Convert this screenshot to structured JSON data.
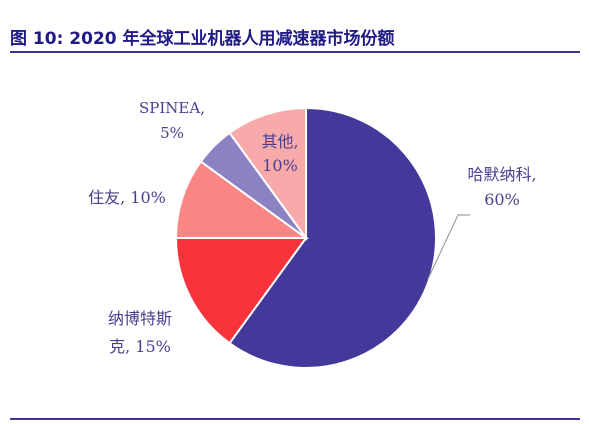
{
  "figure": {
    "title": "图 10:  2020 年全球工业机器人用减速器市场份额"
  },
  "chart_data": {
    "type": "pie",
    "title": "图 10:  2020 年全球工业机器人用减速器市场份额",
    "slices": [
      {
        "name": "哈默纳科",
        "value": 60,
        "color": "#43399a",
        "label_lines": [
          "哈默纳科,",
          "60%"
        ]
      },
      {
        "name": "纳博特斯克",
        "value": 15,
        "color": "#f8333b",
        "label_lines": [
          "纳博特斯",
          "克, 15%"
        ]
      },
      {
        "name": "住友",
        "value": 10,
        "color": "#f98685",
        "label_lines": [
          "住友, 10%"
        ]
      },
      {
        "name": "SPINEA",
        "value": 5,
        "color": "#8b82c4",
        "label_lines": [
          "SPINEA,",
          "5%"
        ]
      },
      {
        "name": "其他",
        "value": 10,
        "color": "#f8aaab",
        "label_lines": [
          "其他,",
          "10%"
        ]
      }
    ],
    "start_angle_deg": 0,
    "direction": "clockwise",
    "legend": "none"
  }
}
